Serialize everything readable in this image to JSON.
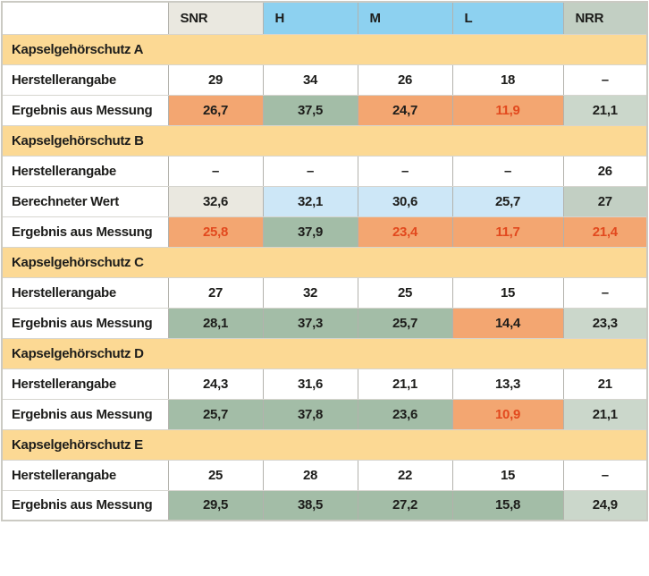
{
  "colors": {
    "header_beige": "#eae8e0",
    "header_blue": "#8dd1f0",
    "header_sage": "#c2cfc3",
    "group_tan": "#fcd994",
    "calc_lightblue": "#cde7f7",
    "pass_green": "#a3bda7",
    "pass_lightgreen": "#cbd7cb",
    "fail_orange": "#f3a671",
    "fail_red_text": "#e2491e",
    "text_black": "#1d1d1b"
  },
  "chart_data": {
    "type": "table",
    "columns": [
      {
        "label": "",
        "style": "plain"
      },
      {
        "label": "SNR",
        "style": "beige"
      },
      {
        "label": "H",
        "style": "blue"
      },
      {
        "label": "M",
        "style": "blue"
      },
      {
        "label": "L",
        "style": "blue"
      },
      {
        "label": "NRR",
        "style": "sage"
      }
    ],
    "sections": [
      {
        "title": "Kapselgehörschutz A",
        "rows": [
          {
            "label": "Herstellerangabe",
            "cells": [
              {
                "v": "29",
                "s": "plain"
              },
              {
                "v": "34",
                "s": "plain"
              },
              {
                "v": "26",
                "s": "plain"
              },
              {
                "v": "18",
                "s": "plain"
              },
              {
                "v": "–",
                "s": "plain"
              }
            ]
          },
          {
            "label": "Ergebnis aus Messung",
            "cells": [
              {
                "v": "26,7",
                "s": "orange"
              },
              {
                "v": "37,5",
                "s": "green"
              },
              {
                "v": "24,7",
                "s": "orange"
              },
              {
                "v": "11,9",
                "s": "orange-red"
              },
              {
                "v": "21,1",
                "s": "lightgreen"
              }
            ]
          }
        ]
      },
      {
        "title": "Kapselgehörschutz B",
        "rows": [
          {
            "label": "Herstellerangabe",
            "cells": [
              {
                "v": "–",
                "s": "plain"
              },
              {
                "v": "–",
                "s": "plain"
              },
              {
                "v": "–",
                "s": "plain"
              },
              {
                "v": "–",
                "s": "plain"
              },
              {
                "v": "26",
                "s": "plain"
              }
            ]
          },
          {
            "label": "Berechneter Wert",
            "cells": [
              {
                "v": "32,6",
                "s": "beige"
              },
              {
                "v": "32,1",
                "s": "lightblue"
              },
              {
                "v": "30,6",
                "s": "lightblue"
              },
              {
                "v": "25,7",
                "s": "lightblue"
              },
              {
                "v": "27",
                "s": "sage"
              }
            ]
          },
          {
            "label": "Ergebnis aus Messung",
            "cells": [
              {
                "v": "25,8",
                "s": "orange-red"
              },
              {
                "v": "37,9",
                "s": "green"
              },
              {
                "v": "23,4",
                "s": "orange-red"
              },
              {
                "v": "11,7",
                "s": "orange-red"
              },
              {
                "v": "21,4",
                "s": "orange-red"
              }
            ]
          }
        ]
      },
      {
        "title": "Kapselgehörschutz C",
        "rows": [
          {
            "label": "Herstellerangabe",
            "cells": [
              {
                "v": "27",
                "s": "plain"
              },
              {
                "v": "32",
                "s": "plain"
              },
              {
                "v": "25",
                "s": "plain"
              },
              {
                "v": "15",
                "s": "plain"
              },
              {
                "v": "–",
                "s": "plain"
              }
            ]
          },
          {
            "label": "Ergebnis aus Messung",
            "cells": [
              {
                "v": "28,1",
                "s": "green"
              },
              {
                "v": "37,3",
                "s": "green"
              },
              {
                "v": "25,7",
                "s": "green"
              },
              {
                "v": "14,4",
                "s": "orange"
              },
              {
                "v": "23,3",
                "s": "lightgreen"
              }
            ]
          }
        ]
      },
      {
        "title": "Kapselgehörschutz D",
        "rows": [
          {
            "label": "Herstellerangabe",
            "cells": [
              {
                "v": "24,3",
                "s": "plain"
              },
              {
                "v": "31,6",
                "s": "plain"
              },
              {
                "v": "21,1",
                "s": "plain"
              },
              {
                "v": "13,3",
                "s": "plain"
              },
              {
                "v": "21",
                "s": "plain"
              }
            ]
          },
          {
            "label": "Ergebnis aus Messung",
            "cells": [
              {
                "v": "25,7",
                "s": "green"
              },
              {
                "v": "37,8",
                "s": "green"
              },
              {
                "v": "23,6",
                "s": "green"
              },
              {
                "v": "10,9",
                "s": "orange-red"
              },
              {
                "v": "21,1",
                "s": "lightgreen"
              }
            ]
          }
        ]
      },
      {
        "title": "Kapselgehörschutz E",
        "rows": [
          {
            "label": "Herstellerangabe",
            "cells": [
              {
                "v": "25",
                "s": "plain"
              },
              {
                "v": "28",
                "s": "plain"
              },
              {
                "v": "22",
                "s": "plain"
              },
              {
                "v": "15",
                "s": "plain"
              },
              {
                "v": "–",
                "s": "plain"
              }
            ]
          },
          {
            "label": "Ergebnis aus Messung",
            "cells": [
              {
                "v": "29,5",
                "s": "green"
              },
              {
                "v": "38,5",
                "s": "green"
              },
              {
                "v": "27,2",
                "s": "green"
              },
              {
                "v": "15,8",
                "s": "green"
              },
              {
                "v": "24,9",
                "s": "lightgreen"
              }
            ]
          }
        ]
      }
    ]
  }
}
